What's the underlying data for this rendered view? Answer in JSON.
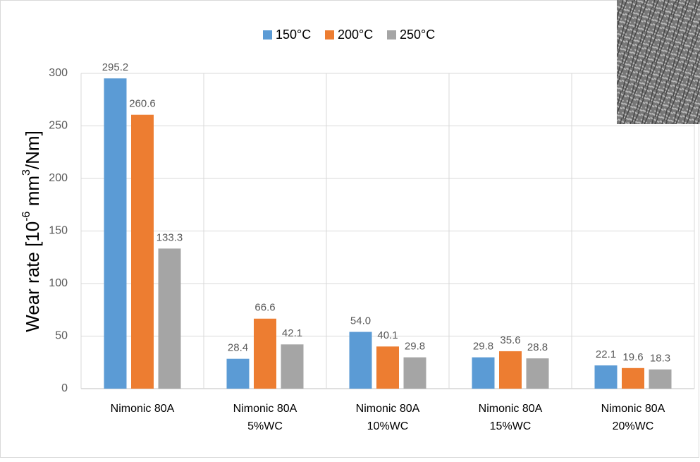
{
  "chart_data": {
    "type": "bar",
    "y_label": [
      "Wear rate [10",
      "-6",
      " mm",
      "3",
      "/Nm]"
    ],
    "categories": [
      [
        "Nimonic 80A"
      ],
      [
        "Nimonic 80A",
        "5%WC"
      ],
      [
        "Nimonic 80A",
        "10%WC"
      ],
      [
        "Nimonic 80A",
        "15%WC"
      ],
      [
        "Nimonic 80A",
        "20%WC"
      ]
    ],
    "series": [
      {
        "name": "150°C",
        "color": "#5b9bd5",
        "values": [
          295.2,
          28.4,
          54.0,
          29.8,
          22.1
        ],
        "value_labels": [
          "295.2",
          "28.4",
          "54.0",
          "29.8",
          "22.1"
        ]
      },
      {
        "name": "200°C",
        "color": "#ed7d31",
        "values": [
          260.6,
          66.6,
          40.1,
          35.6,
          19.6
        ],
        "value_labels": [
          "260.6",
          "66.6",
          "40.1",
          "35.6",
          "19.6"
        ]
      },
      {
        "name": "250°C",
        "color": "#a5a5a5",
        "values": [
          133.3,
          42.1,
          29.8,
          28.8,
          18.3
        ],
        "value_labels": [
          "133.3",
          "42.1",
          "29.8",
          "28.8",
          "18.3"
        ]
      }
    ],
    "ylim": [
      0,
      300
    ],
    "yticks": [
      0,
      50,
      100,
      150,
      200,
      250,
      300
    ],
    "grid": true,
    "legend": "top"
  }
}
